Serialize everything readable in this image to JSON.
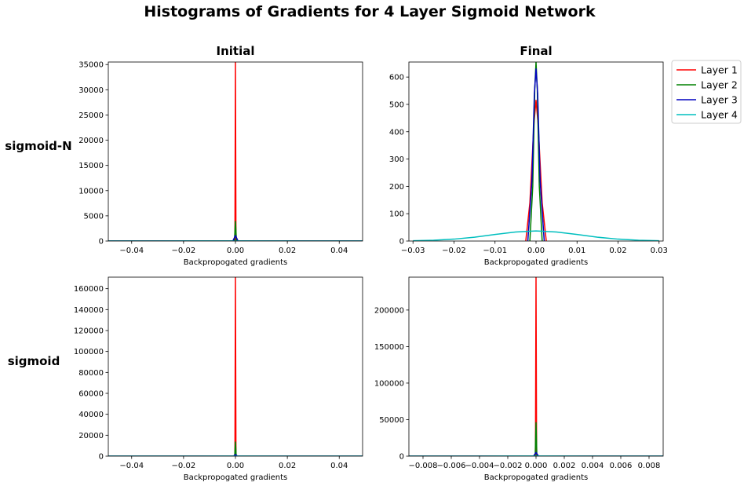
{
  "figure": {
    "title": "Histograms of Gradients for 4 Layer Sigmoid Network",
    "column_titles": [
      "Initial",
      "Final"
    ],
    "row_labels": [
      "sigmoid-N",
      "sigmoid"
    ]
  },
  "legend": {
    "placement": "upper-right-outside",
    "entries": [
      {
        "name": "Layer 1",
        "color": "#ff0000"
      },
      {
        "name": "Layer 2",
        "color": "#008000"
      },
      {
        "name": "Layer 3",
        "color": "#0000bf"
      },
      {
        "name": "Layer 4",
        "color": "#00bfbf"
      }
    ]
  },
  "chart_data": [
    {
      "type": "line",
      "row": "sigmoid-N",
      "column": "Initial",
      "xlabel": "Backpropogated gradients",
      "ylabel": "",
      "xlim": [
        -0.049,
        0.049
      ],
      "ylim": [
        0,
        35500
      ],
      "xticks": [
        -0.04,
        -0.02,
        0.0,
        0.02,
        0.04
      ],
      "xtick_labels": [
        "−0.04",
        "−0.02",
        "0.00",
        "0.02",
        "0.04"
      ],
      "yticks": [
        0,
        5000,
        10000,
        15000,
        20000,
        25000,
        30000,
        35000
      ],
      "grid": false,
      "series": [
        {
          "name": "Layer 1",
          "color": "#ff0000",
          "x": [
            -0.049,
            -0.0002,
            0.0,
            0.0002,
            0.049
          ],
          "y": [
            0,
            0,
            35500,
            0,
            0
          ]
        },
        {
          "name": "Layer 2",
          "color": "#008000",
          "x": [
            -0.049,
            -0.0004,
            0.0,
            0.0004,
            0.049
          ],
          "y": [
            0,
            0,
            3900,
            0,
            0
          ]
        },
        {
          "name": "Layer 3",
          "color": "#0000bf",
          "x": [
            -0.049,
            -0.001,
            0.0,
            0.001,
            0.049
          ],
          "y": [
            0,
            0,
            1100,
            0,
            0
          ]
        },
        {
          "name": "Layer 4",
          "color": "#00bfbf",
          "x": [
            -0.049,
            -0.03,
            0.0,
            0.03,
            0.049
          ],
          "y": [
            0,
            0,
            20,
            0,
            0
          ]
        }
      ]
    },
    {
      "type": "line",
      "row": "sigmoid-N",
      "column": "Final",
      "xlabel": "Backpropogated gradients",
      "ylabel": "",
      "xlim": [
        -0.031,
        0.031
      ],
      "ylim": [
        0,
        655
      ],
      "xticks": [
        -0.03,
        -0.02,
        -0.01,
        0.0,
        0.01,
        0.02,
        0.03
      ],
      "xtick_labels": [
        "−0.03",
        "−0.02",
        "−0.01",
        "0.00",
        "0.01",
        "0.02",
        "0.03"
      ],
      "yticks": [
        0,
        100,
        200,
        300,
        400,
        500,
        600
      ],
      "grid": false,
      "series": [
        {
          "name": "Layer 1",
          "color": "#ff0000",
          "x": [
            -0.0025,
            -0.0015,
            -0.0005,
            0.0,
            0.0005,
            0.0015,
            0.0025
          ],
          "y": [
            0,
            140,
            430,
            515,
            430,
            140,
            0
          ]
        },
        {
          "name": "Layer 2",
          "color": "#008000",
          "x": [
            -0.0015,
            -0.0008,
            -0.0003,
            0.0,
            0.0003,
            0.0008,
            0.0015
          ],
          "y": [
            0,
            200,
            560,
            655,
            560,
            200,
            0
          ]
        },
        {
          "name": "Layer 3",
          "color": "#0000bf",
          "x": [
            -0.002,
            -0.001,
            -0.0004,
            0.0,
            0.0004,
            0.001,
            0.002
          ],
          "y": [
            0,
            220,
            540,
            630,
            540,
            220,
            0
          ]
        },
        {
          "name": "Layer 4",
          "color": "#00bfbf",
          "x": [
            -0.03,
            -0.025,
            -0.02,
            -0.015,
            -0.01,
            -0.005,
            0.0,
            0.005,
            0.01,
            0.015,
            0.02,
            0.025,
            0.03
          ],
          "y": [
            1,
            3,
            7,
            14,
            24,
            33,
            37,
            33,
            24,
            14,
            7,
            3,
            1
          ]
        }
      ]
    },
    {
      "type": "line",
      "row": "sigmoid",
      "column": "Initial",
      "xlabel": "Backpropogated gradients",
      "ylabel": "",
      "xlim": [
        -0.049,
        0.049
      ],
      "ylim": [
        0,
        171000
      ],
      "xticks": [
        -0.04,
        -0.02,
        0.0,
        0.02,
        0.04
      ],
      "xtick_labels": [
        "−0.04",
        "−0.02",
        "0.00",
        "0.02",
        "0.04"
      ],
      "yticks": [
        0,
        20000,
        40000,
        60000,
        80000,
        100000,
        120000,
        140000,
        160000
      ],
      "grid": false,
      "series": [
        {
          "name": "Layer 1",
          "color": "#ff0000",
          "x": [
            -0.049,
            -0.0002,
            0.0,
            0.0002,
            0.049
          ],
          "y": [
            0,
            0,
            171000,
            0,
            0
          ]
        },
        {
          "name": "Layer 2",
          "color": "#008000",
          "x": [
            -0.049,
            -0.0003,
            0.0,
            0.0003,
            0.049
          ],
          "y": [
            0,
            0,
            13500,
            0,
            0
          ]
        },
        {
          "name": "Layer 3",
          "color": "#0000bf",
          "x": [
            -0.049,
            -0.0008,
            0.0,
            0.0008,
            0.049
          ],
          "y": [
            0,
            0,
            1500,
            0,
            0
          ]
        },
        {
          "name": "Layer 4",
          "color": "#00bfbf",
          "x": [
            -0.049,
            -0.02,
            0.0,
            0.02,
            0.049
          ],
          "y": [
            0,
            0,
            80,
            0,
            0
          ]
        }
      ]
    },
    {
      "type": "line",
      "row": "sigmoid",
      "column": "Final",
      "xlabel": "Backpropogated gradients",
      "ylabel": "",
      "xlim": [
        -0.009,
        0.009
      ],
      "ylim": [
        0,
        245000
      ],
      "xticks": [
        -0.008,
        -0.006,
        -0.004,
        -0.002,
        0.0,
        0.002,
        0.004,
        0.006,
        0.008
      ],
      "xtick_labels": [
        "−0.008",
        "−0.006",
        "−0.004",
        "−0.002",
        "0.000",
        "0.002",
        "0.004",
        "0.006",
        "0.008"
      ],
      "yticks": [
        0,
        50000,
        100000,
        150000,
        200000
      ],
      "grid": false,
      "series": [
        {
          "name": "Layer 1",
          "color": "#ff0000",
          "x": [
            -0.009,
            -4e-05,
            0.0,
            4e-05,
            0.009
          ],
          "y": [
            0,
            0,
            245000,
            0,
            0
          ]
        },
        {
          "name": "Layer 2",
          "color": "#008000",
          "x": [
            -0.009,
            -6e-05,
            0.0,
            6e-05,
            0.009
          ],
          "y": [
            0,
            0,
            46000,
            0,
            0
          ]
        },
        {
          "name": "Layer 3",
          "color": "#0000bf",
          "x": [
            -0.009,
            -0.00018,
            0.0,
            0.00018,
            0.009
          ],
          "y": [
            0,
            0,
            5000,
            0,
            0
          ]
        },
        {
          "name": "Layer 4",
          "color": "#00bfbf",
          "x": [
            -0.009,
            -0.004,
            0.0,
            0.004,
            0.009
          ],
          "y": [
            0,
            0,
            200,
            0,
            0
          ]
        }
      ]
    }
  ]
}
